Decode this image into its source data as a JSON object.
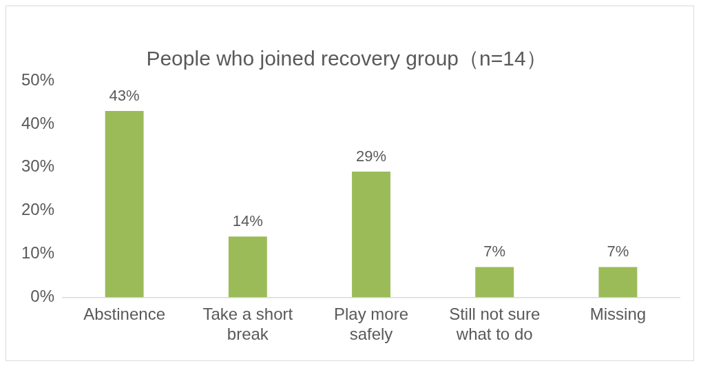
{
  "chart_data": {
    "type": "bar",
    "title": "People who joined recovery group（n=14）",
    "categories": [
      "Abstinence",
      "Take a short break",
      "Play more safely",
      "Still not sure what to do",
      "Missing"
    ],
    "values": [
      43,
      14,
      29,
      7,
      7
    ],
    "value_labels": [
      "43%",
      "14%",
      "29%",
      "7%",
      "7%"
    ],
    "color": "#9bbb59",
    "ylim": [
      0,
      50
    ],
    "yticks": [
      {
        "value": 0,
        "label": "0%"
      },
      {
        "value": 10,
        "label": "10%"
      },
      {
        "value": 20,
        "label": "20%"
      },
      {
        "value": 30,
        "label": "30%"
      },
      {
        "value": 40,
        "label": "40%"
      },
      {
        "value": 50,
        "label": "50%"
      }
    ],
    "grid": false,
    "legend": false
  }
}
